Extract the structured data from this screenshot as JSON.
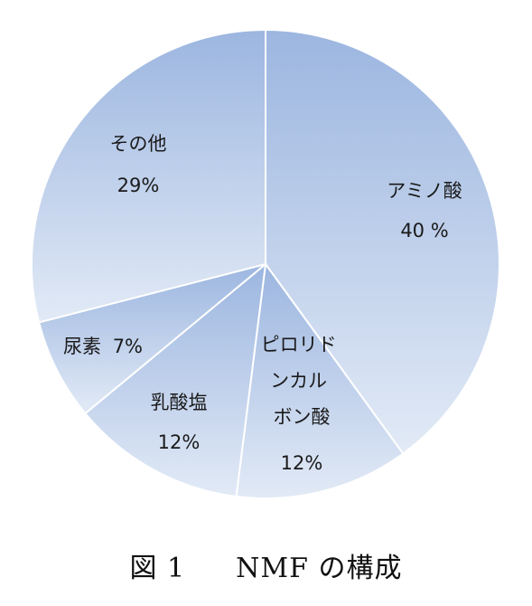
{
  "chart_data": {
    "type": "pie",
    "title": "",
    "slices": [
      {
        "label": "アミノ酸",
        "value": 40,
        "value_label": "40 %"
      },
      {
        "label": "ピロリドンカルボン酸",
        "value": 12,
        "value_label": "12%"
      },
      {
        "label": "乳酸塩",
        "value": 12,
        "value_label": "12%"
      },
      {
        "label": "尿素",
        "value": 7,
        "value_label": "7%"
      },
      {
        "label": "その他",
        "value": 29,
        "value_label": "29%"
      }
    ],
    "start_angle_deg": 0,
    "direction": "clockwise",
    "fill_gradient": [
      "#9cb6e0",
      "#e2eaf6"
    ],
    "edge_color": "#ffffff"
  },
  "caption": {
    "figure_number": "図 1",
    "text": "NMF の構成"
  }
}
